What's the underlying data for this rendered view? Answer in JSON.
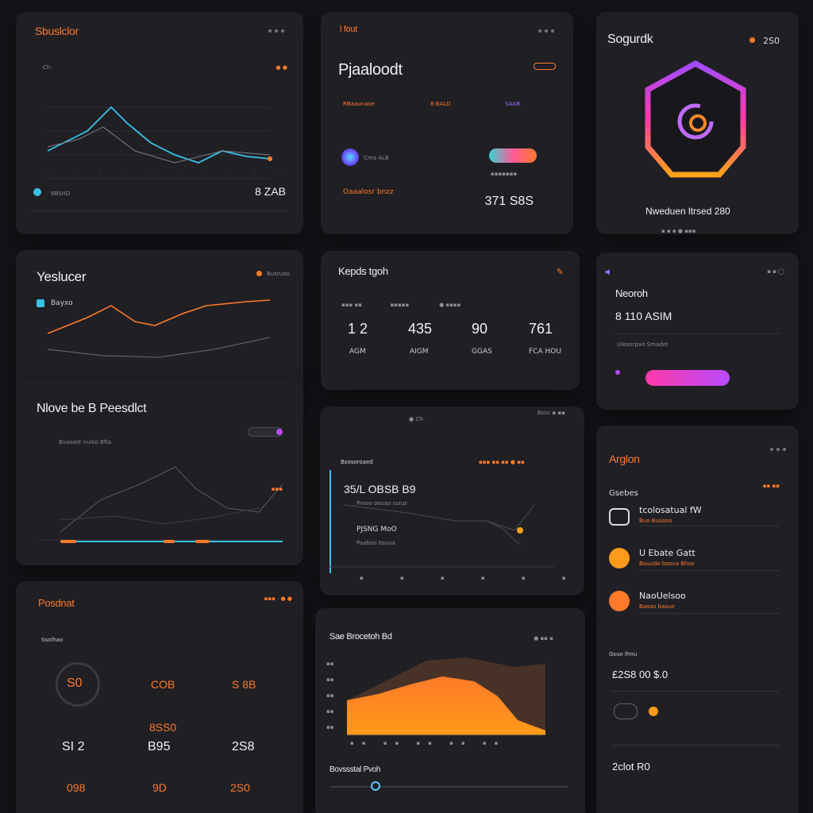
{
  "cards": {
    "c1": {
      "title": "Sbuslclor",
      "sub1": "Ch·",
      "value": "8 ZAB",
      "chip": "8BSHD",
      "icons": [
        "search-icon",
        "settings-icon",
        "more-icon"
      ]
    },
    "c2": {
      "tag": "l fout",
      "title": "Pjaaloodt",
      "r1": "RBaaunaoe",
      "r2": "8 BALD",
      "r3": "SAAB",
      "user": "Cma ALB",
      "label": "Oaaalosr bnzz",
      "value": "371 S8S"
    },
    "c3": {
      "title": "Sogurdk",
      "badge": "2S0",
      "caption": "Nweduen ltrsed 280"
    },
    "c4": {
      "title": "Yeslucer",
      "legend": "Bayxo",
      "status": "Busruoo"
    },
    "c5": {
      "title": "Kepds tgoh",
      "stats": [
        {
          "v": "1 2",
          "l": "AGM"
        },
        {
          "v": "435",
          "l": "AIGM"
        },
        {
          "v": "90",
          "l": "GGAS"
        },
        {
          "v": "761",
          "l": "FCA HOU"
        }
      ]
    },
    "c6": {
      "title": "Neoroh",
      "value": "8 110 ASIM",
      "sub": "Ulexorpan Smadet"
    },
    "c7": {
      "title": "Nlove be B Peesdlct",
      "legend": "Bvasaot nuloo Bfta"
    },
    "c8": {
      "label": "Bsosoroaed",
      "value": "35/L OBSB B9",
      "sub1": "Prooo oouao suiuz",
      "name": "PJSNG MoO",
      "sub2": "Paaboo bsoua"
    },
    "c9": {
      "title": "Arglon",
      "sub": "Gsebes",
      "items": [
        {
          "name": "tcolosatual fW",
          "sub": "Buo Busooo"
        },
        {
          "name": "U Ebate Gatt",
          "sub": "Bouudo bosua Bhso"
        },
        {
          "name": "NaoUelsoo",
          "sub": "Baoas basuo"
        }
      ],
      "total_label": "Gsuo lhnu",
      "total": "£2S8 00 $.0",
      "foot": "2clot R0"
    },
    "c10": {
      "title": "Posdnat",
      "sub": "Ssolhao",
      "center": "S0",
      "stats": [
        "COB",
        "S 8B",
        "8SS0",
        "SI 2",
        "B95",
        "2S8",
        "098",
        "9D",
        "2S0"
      ]
    },
    "c11": {
      "title": "Sae Brocetoh Bd",
      "footer": "Bovssstal Pvoh"
    }
  }
}
